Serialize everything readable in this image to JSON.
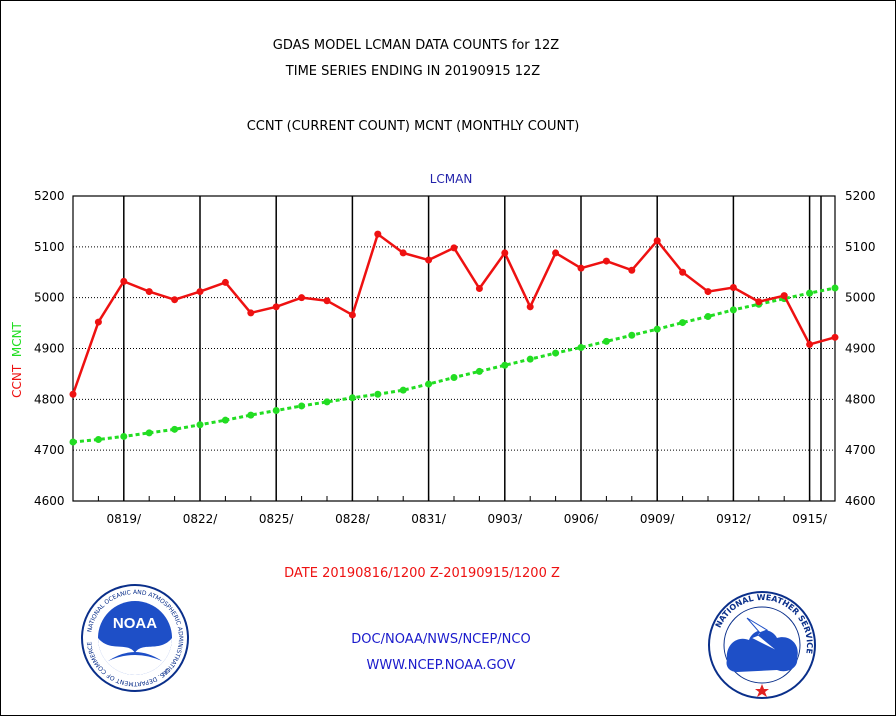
{
  "title_line1": "GDAS MODEL LCMAN DATA COUNTS for 12Z",
  "title_line2": "TIME SERIES ENDING IN 20190915 12Z",
  "subtitle": "CCNT (CURRENT COUNT) MCNT (MONTHLY COUNT)",
  "panel_label": "LCMAN",
  "ylabel_ccnt": "CCNT",
  "ylabel_mcnt": "MCNT",
  "date_range": "DATE 20190816/1200 Z-20190915/1200 Z",
  "footer_org": "DOC/NOAA/NWS/NCEP/NCO",
  "footer_url": "WWW.NCEP.NOAA.GOV",
  "logos": {
    "left": "NOAA",
    "left_ring": "NATIONAL OCEANIC AND ATMOSPHERIC ADMINISTRATION",
    "left_ring_bottom": "U.S. DEPARTMENT OF COMMERCE",
    "right_ring": "NATIONAL WEATHER SERVICE"
  },
  "colors": {
    "ccnt": "#ee1111",
    "mcnt": "#22dd22",
    "title": "#000000",
    "panel_label": "#2222aa",
    "date_range": "#ee1111",
    "footer": "#1a1acc"
  },
  "chart_data": {
    "type": "line",
    "ylim": [
      4600,
      5200
    ],
    "yticks": [
      4600,
      4700,
      4800,
      4900,
      5000,
      5100,
      5200
    ],
    "xtick_labels": [
      "0819/",
      "0822/",
      "0825/",
      "0828/",
      "0831/",
      "0903/",
      "0906/",
      "0909/",
      "0912/",
      "0915/"
    ],
    "series": [
      {
        "name": "CCNT",
        "values": [
          4810,
          4952,
          5032,
          5012,
          4996,
          5012,
          5030,
          4970,
          4982,
          5000,
          4994,
          4966,
          5125,
          5088,
          5074,
          5098,
          5018,
          5088,
          4982,
          5088,
          5058,
          5072,
          5054,
          5112,
          5050,
          5012,
          5020,
          4992,
          5004,
          4908,
          4922
        ]
      },
      {
        "name": "MCNT",
        "values": [
          4716,
          4721,
          4727,
          4734,
          4741,
          4750,
          4759,
          4769,
          4778,
          4787,
          4795,
          4803,
          4810,
          4818,
          4830,
          4843,
          4855,
          4867,
          4879,
          4891,
          4902,
          4914,
          4926,
          4938,
          4951,
          4963,
          4976,
          4987,
          4998,
          5009,
          5019
        ]
      }
    ]
  }
}
